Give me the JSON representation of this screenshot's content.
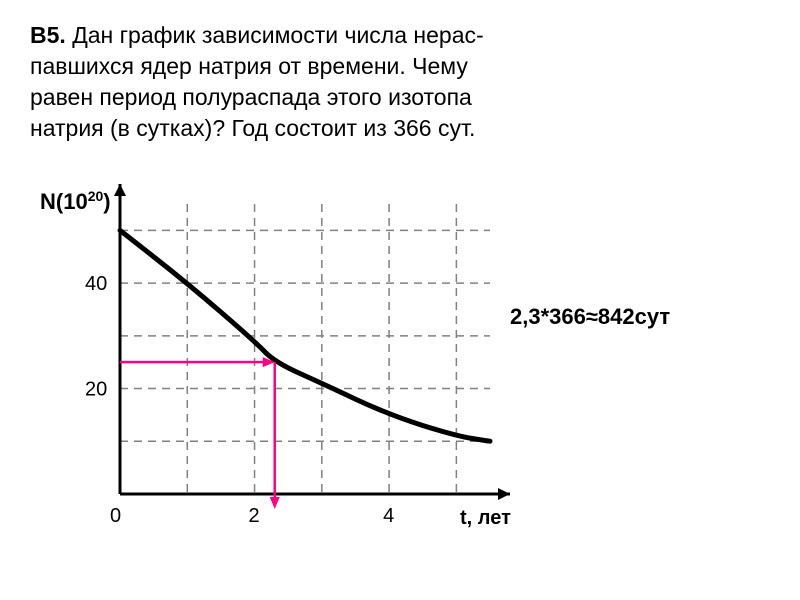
{
  "problem": {
    "label": "В5.",
    "text_line1": "Дан график зависимости числа нерас-",
    "text_line2": "павшихся ядер натрия  от времени. Чему",
    "text_line3": "равен период полураспада этого изотопа",
    "text_line4": "натрия (в сутках)? Год состоит из 366 сут."
  },
  "chart": {
    "y_label": "N(10",
    "y_label_sup": "20",
    "y_label_close": ")",
    "x_label": "t, лет",
    "y_ticks": [
      "20",
      "40"
    ],
    "x_ticks": [
      "0",
      "2",
      "4"
    ],
    "axis_color": "#000000",
    "grid_color": "#808080",
    "curve_color": "#000000",
    "arrow_color": "#ff0080",
    "background": "#ffffff",
    "y_axis_fontsize": 22,
    "tick_fontsize": 20,
    "curve_points": [
      [
        0,
        50
      ],
      [
        1,
        40
      ],
      [
        2,
        29
      ],
      [
        2.3,
        25
      ],
      [
        3,
        21
      ],
      [
        4,
        15
      ],
      [
        5,
        11
      ],
      [
        5.5,
        10
      ]
    ],
    "grid_x_lines": [
      1,
      2,
      3,
      4,
      5
    ],
    "grid_y_lines": [
      10,
      20,
      30,
      40,
      50
    ],
    "half_life_y": 25,
    "half_life_x": 2.3,
    "xlim": [
      0,
      5.5
    ],
    "ylim": [
      0,
      55
    ]
  },
  "answer": {
    "text": "2,3*366≈842сут"
  }
}
